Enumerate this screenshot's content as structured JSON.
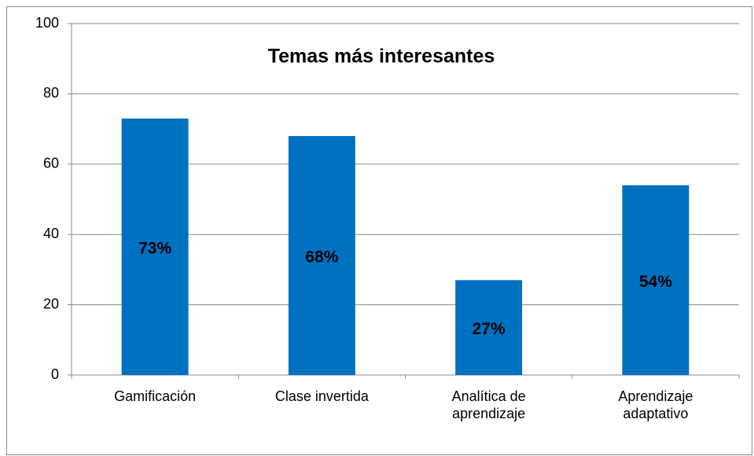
{
  "chart_data": {
    "type": "bar",
    "title": "Temas más interesantes",
    "categories": [
      "Gamificación",
      "Clase invertida",
      "Analítica de aprendizaje",
      "Aprendizaje adaptativo"
    ],
    "values": [
      73,
      68,
      27,
      54
    ],
    "value_labels": [
      "73%",
      "68%",
      "27%",
      "54%"
    ],
    "color": "#0070c0",
    "ylim": [
      0,
      100
    ],
    "yticks": [
      0,
      20,
      40,
      60,
      80,
      100
    ],
    "grid": true
  }
}
